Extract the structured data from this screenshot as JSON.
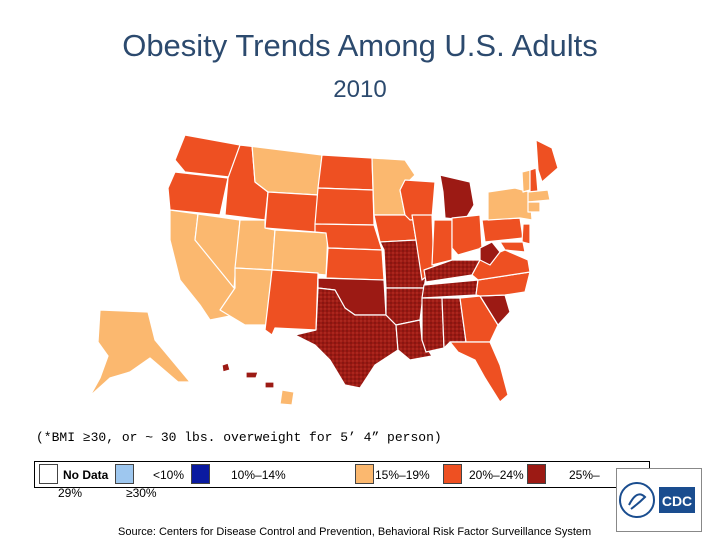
{
  "title": "Obesity Trends Among U.S. Adults",
  "year": "2010",
  "footnote": "(*BMI ≥30, or ~ 30 lbs. overweight for 5’ 4” person)",
  "legend": [
    {
      "label": "No Data",
      "color": "#ffffff"
    },
    {
      "label": "<10%",
      "color": "#9ec7ef"
    },
    {
      "label": "10%–14%",
      "color": "#0a1aa0"
    },
    {
      "label": "15%–19%",
      "color": "#fbb86f"
    },
    {
      "label": "20%–24%",
      "color": "#ee5022"
    },
    {
      "label": "25%–29%",
      "color": "#9c1a14"
    },
    {
      "label": "≥30%",
      "color": "#ffffff"
    }
  ],
  "legend_visible_text": {
    "no_data": "No Data",
    "lt10": "<10%",
    "r10_14": "10%–14%",
    "r15_19": "15%–19%",
    "r20_24": "20%–24%",
    "r25_29_a": "25%–",
    "r25_29_b": "29%",
    "ge30": "≥30%"
  },
  "source": "Source: Centers for Disease Control and Prevention, Behavioral Risk Factor Surveillance System",
  "logo_text": "CDC",
  "colors": {
    "title": "#2c4a6e",
    "band_15_19": "#fbb86f",
    "band_20_24": "#ee5022",
    "band_25_29": "#9c1a14",
    "ge30_hatch": "#8b1a12"
  }
}
